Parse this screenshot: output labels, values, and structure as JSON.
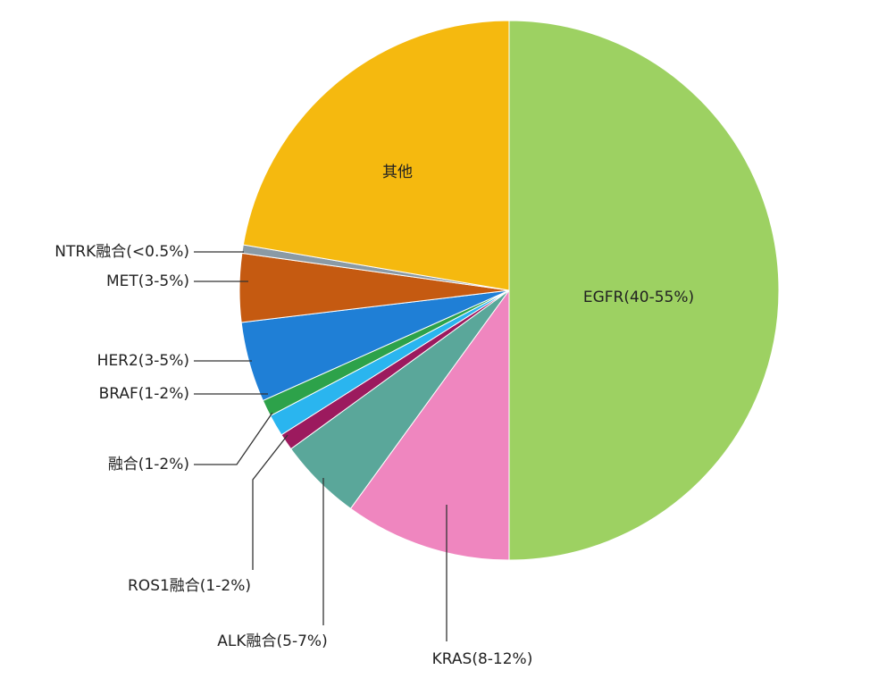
{
  "chart_data": {
    "type": "pie",
    "categories": [
      "EGFR(40-55%)",
      "KRAS(8-12%)",
      "ALK融合(5-7%)",
      "ROS1融合(1-2%)",
      "融合(1-2%)",
      "BRAF(1-2%)",
      "HER2(3-5%)",
      "MET(3-5%)",
      "NTRK融合(<0.5%)",
      "其他"
    ],
    "values": [
      50,
      10,
      5,
      1,
      1.3,
      1,
      4.8,
      4.1,
      0.5,
      22.3
    ],
    "colors": [
      "#9dd162",
      "#ef86bf",
      "#5aa79a",
      "#9c1a5e",
      "#2ab5ef",
      "#2da24a",
      "#1f7fd6",
      "#c55a11",
      "#8a9aa5",
      "#f5b90f"
    ]
  }
}
